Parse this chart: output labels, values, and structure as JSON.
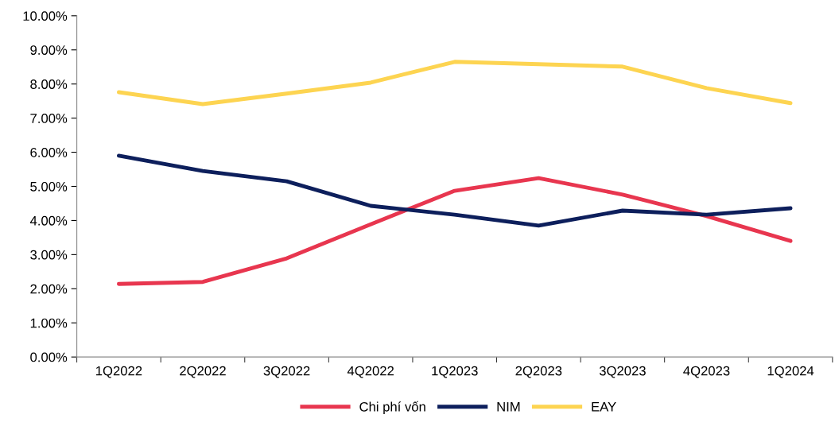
{
  "chart_data": {
    "type": "line",
    "categories": [
      "1Q2022",
      "2Q2022",
      "3Q2022",
      "4Q2022",
      "1Q2023",
      "2Q2023",
      "3Q2023",
      "4Q2023",
      "1Q2024"
    ],
    "series": [
      {
        "name": "Chi phí vốn",
        "color": "#e8364f",
        "values": [
          2.14,
          2.2,
          2.89,
          3.89,
          4.87,
          5.24,
          4.76,
          4.13,
          3.4
        ]
      },
      {
        "name": "NIM",
        "color": "#0d1f5c",
        "values": [
          5.9,
          5.45,
          5.15,
          4.43,
          4.17,
          3.85,
          4.29,
          4.17,
          4.36
        ]
      },
      {
        "name": "EAY",
        "color": "#fdd451",
        "values": [
          7.76,
          7.41,
          7.72,
          8.04,
          8.65,
          8.58,
          8.51,
          7.88,
          7.44
        ]
      }
    ],
    "ylim": [
      0,
      10
    ],
    "yticks": [
      {
        "value": 0,
        "label": "0.00%"
      },
      {
        "value": 1,
        "label": "1.00%"
      },
      {
        "value": 2,
        "label": "2.00%"
      },
      {
        "value": 3,
        "label": "3.00%"
      },
      {
        "value": 4,
        "label": "4.00%"
      },
      {
        "value": 5,
        "label": "5.00%"
      },
      {
        "value": 6,
        "label": "6.00%"
      },
      {
        "value": 7,
        "label": "7.00%"
      },
      {
        "value": 8,
        "label": "8.00%"
      },
      {
        "value": 9,
        "label": "9.00%"
      },
      {
        "value": 10,
        "label": "10.00%"
      }
    ],
    "legend": "bottom",
    "grid": false,
    "marker": "none",
    "line_style": "solid"
  }
}
